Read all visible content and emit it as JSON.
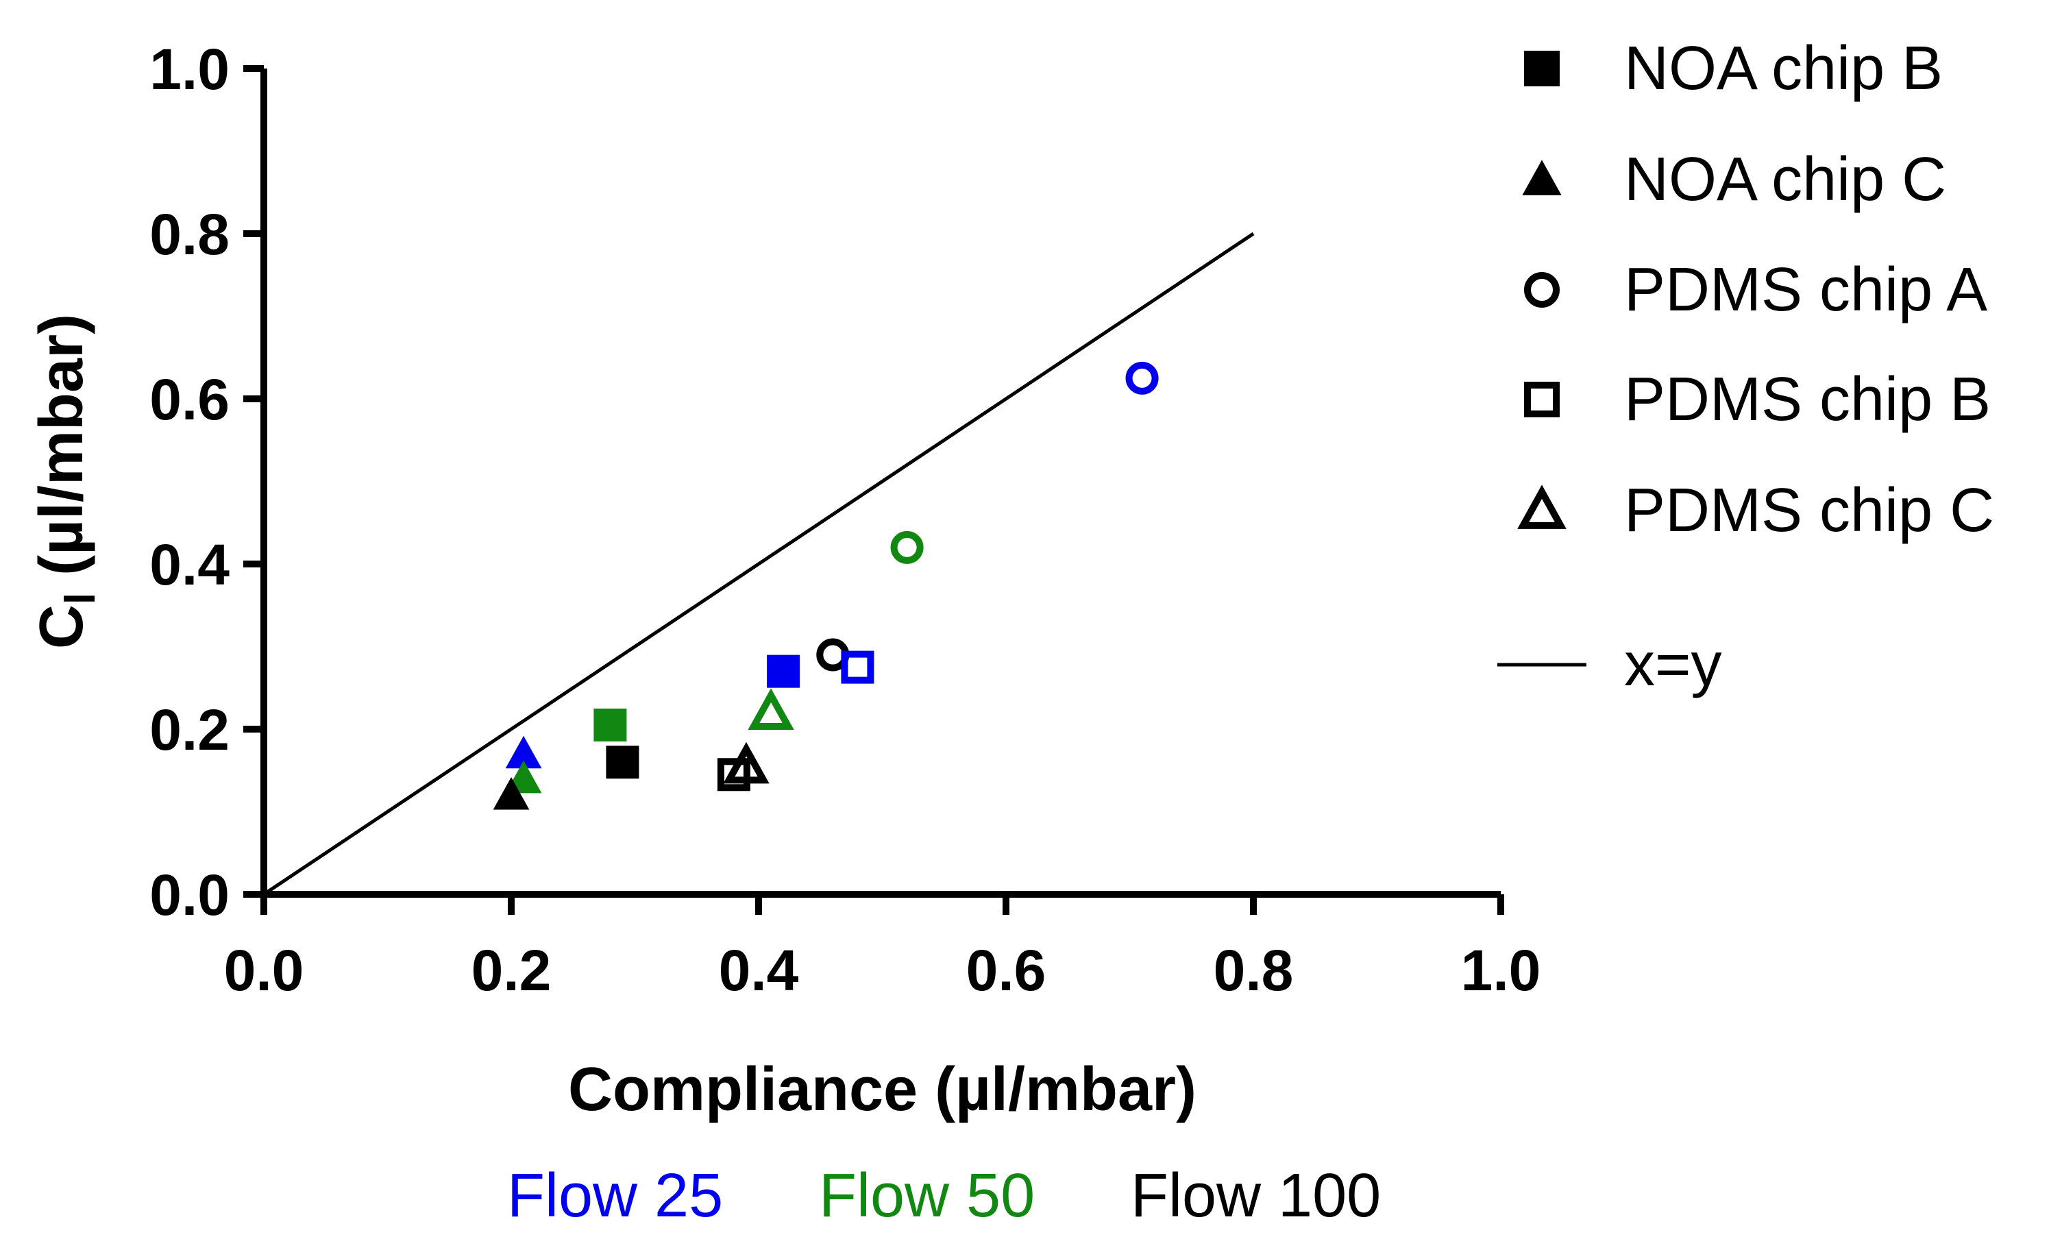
{
  "chart_data": {
    "type": "scatter",
    "xlabel": "Compliance (µl/mbar)",
    "ylabel": {
      "main": "C",
      "subscript": "l",
      "units": " (µl/mbar)"
    },
    "xlim": [
      0.0,
      1.0
    ],
    "ylim": [
      0.0,
      1.0
    ],
    "x_ticks": [
      "0.0",
      "0.2",
      "0.4",
      "0.6",
      "0.8",
      "1.0"
    ],
    "y_ticks": [
      "0.0",
      "0.2",
      "0.4",
      "0.6",
      "0.8",
      "1.0"
    ],
    "grid": false,
    "legend_position": "right",
    "legend": [
      {
        "label": "NOA chip B",
        "marker": "square-filled"
      },
      {
        "label": "NOA chip C",
        "marker": "triangle-filled"
      },
      {
        "label": "PDMS chip A",
        "marker": "circle-open"
      },
      {
        "label": "PDMS chip B",
        "marker": "square-open"
      },
      {
        "label": "PDMS chip C",
        "marker": "triangle-open"
      },
      {
        "label": "x=y",
        "marker": "line"
      }
    ],
    "reference_line": {
      "label": "x=y",
      "x": [
        0.0,
        0.8
      ],
      "y": [
        0.0,
        0.8
      ]
    },
    "flow_labels": [
      {
        "label": "Flow 25",
        "color": "#0000ee"
      },
      {
        "label": "Flow 50",
        "color": "#118811"
      },
      {
        "label": "Flow 100",
        "color": "#000000"
      }
    ],
    "points": [
      {
        "series": "NOA chip B",
        "flow": "Flow 25",
        "x": 0.42,
        "y": 0.27,
        "marker": "square-filled",
        "color": "#0000ee"
      },
      {
        "series": "NOA chip B",
        "flow": "Flow 50",
        "x": 0.28,
        "y": 0.205,
        "marker": "square-filled",
        "color": "#118811"
      },
      {
        "series": "NOA chip B",
        "flow": "Flow 100",
        "x": 0.29,
        "y": 0.16,
        "marker": "square-filled",
        "color": "#000000"
      },
      {
        "series": "NOA chip C",
        "flow": "Flow 25",
        "x": 0.21,
        "y": 0.17,
        "marker": "triangle-filled",
        "color": "#0000ee"
      },
      {
        "series": "NOA chip C",
        "flow": "Flow 50",
        "x": 0.21,
        "y": 0.14,
        "marker": "triangle-filled",
        "color": "#118811"
      },
      {
        "series": "NOA chip C",
        "flow": "Flow 100",
        "x": 0.2,
        "y": 0.12,
        "marker": "triangle-filled",
        "color": "#000000"
      },
      {
        "series": "PDMS chip A",
        "flow": "Flow 25",
        "x": 0.71,
        "y": 0.625,
        "marker": "circle-open",
        "color": "#0000ee"
      },
      {
        "series": "PDMS chip A",
        "flow": "Flow 50",
        "x": 0.52,
        "y": 0.42,
        "marker": "circle-open",
        "color": "#118811"
      },
      {
        "series": "PDMS chip A",
        "flow": "Flow 100",
        "x": 0.46,
        "y": 0.29,
        "marker": "circle-open",
        "color": "#000000"
      },
      {
        "series": "PDMS chip B",
        "flow": "Flow 25",
        "x": 0.48,
        "y": 0.275,
        "marker": "square-open",
        "color": "#0000ee"
      },
      {
        "series": "PDMS chip B",
        "flow": "Flow 100",
        "x": 0.38,
        "y": 0.145,
        "marker": "square-open",
        "color": "#000000"
      },
      {
        "series": "PDMS chip C",
        "flow": "Flow 50",
        "x": 0.41,
        "y": 0.22,
        "marker": "triangle-open",
        "color": "#118811"
      },
      {
        "series": "PDMS chip C",
        "flow": "Flow 100",
        "x": 0.39,
        "y": 0.155,
        "marker": "triangle-open",
        "color": "#000000"
      }
    ]
  }
}
